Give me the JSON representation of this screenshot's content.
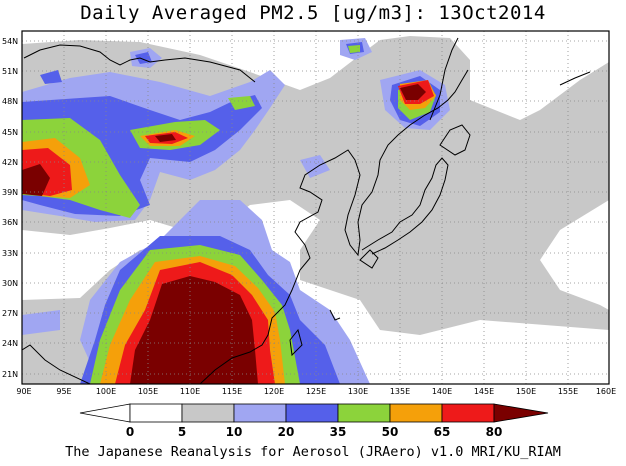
{
  "title": "Daily Averaged PM2.5 [ug/m3]: 13Oct2014",
  "footer": "The Japanese Reanalysis for Aerosol (JRAero) v1.0 MRI/KU_RIAM",
  "map": {
    "lon_range": [
      90,
      160
    ],
    "lat_range": [
      20,
      55
    ],
    "lon_ticks": [
      "90E",
      "95E",
      "100E",
      "105E",
      "110E",
      "115E",
      "120E",
      "125E",
      "130E",
      "135E",
      "140E",
      "145E",
      "150E",
      "155E",
      "160E"
    ],
    "lat_ticks": [
      "21N",
      "24N",
      "27N",
      "30N",
      "33N",
      "36N",
      "39N",
      "42N",
      "45N",
      "48N",
      "51N",
      "54N"
    ]
  },
  "colorbar": {
    "labels": [
      "0",
      "5",
      "10",
      "20",
      "35",
      "50",
      "65",
      "80"
    ],
    "colors": [
      "#ffffff",
      "#c8c8c8",
      "#a0a6f2",
      "#5560ea",
      "#8cd33b",
      "#f5a00a",
      "#ee1a1a",
      "#7a0000"
    ]
  }
}
